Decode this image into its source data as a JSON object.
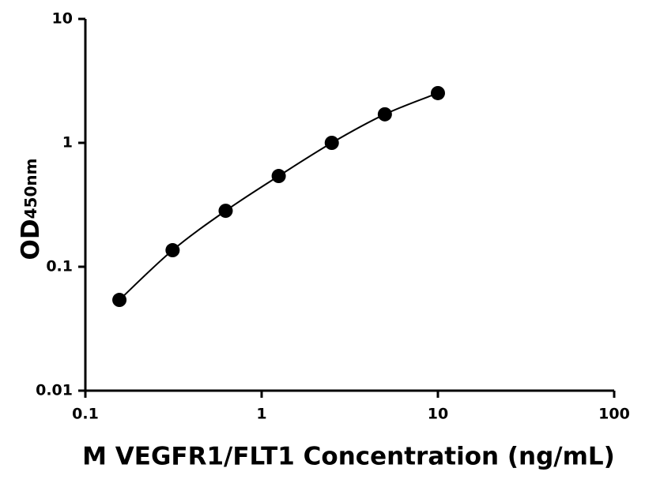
{
  "chart_data": {
    "type": "scatter",
    "x_label": "M VEGFR1/FLT1 Concentration (ng/mL)",
    "y_label": "OD",
    "y_label_sub": "450nm",
    "x": [
      0.156,
      0.3125,
      0.625,
      1.25,
      2.5,
      5,
      10
    ],
    "values": [
      0.054,
      0.136,
      0.283,
      0.54,
      1.0,
      1.7,
      2.52
    ],
    "color": "#000000",
    "x_log": true,
    "y_log": true,
    "fit_line": true,
    "xlim": [
      0.1,
      100
    ],
    "xticks": [
      0.1,
      1,
      10,
      100
    ],
    "ylim": [
      0.01,
      10
    ],
    "yticks": [
      0.01,
      0.1,
      1,
      10
    ]
  }
}
